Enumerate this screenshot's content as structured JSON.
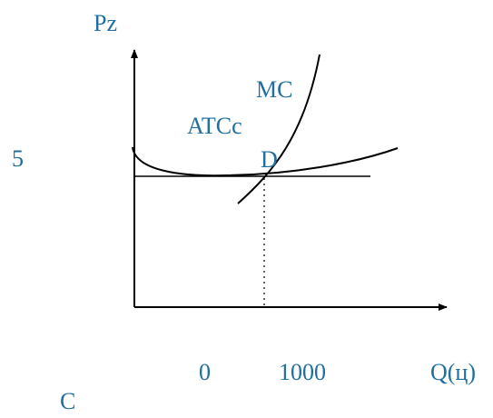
{
  "diagram": {
    "y_axis_label": "Pz",
    "x_axis_label": "Q(ц)",
    "curve_mc_label": "MC",
    "curve_atc_label": "ATCс",
    "point_label": "D",
    "price_level_label": "5",
    "origin_label": "0",
    "quantity_label": "1000",
    "bottom_label": "C",
    "colors": {
      "label_text": "#1f6fa0",
      "lines": "#000000"
    }
  }
}
